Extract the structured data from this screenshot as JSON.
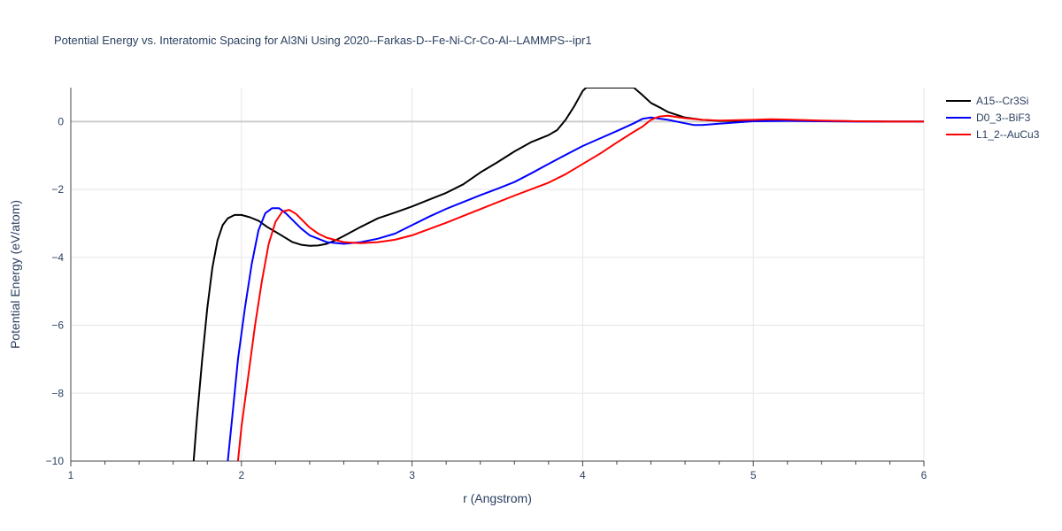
{
  "chart_data": {
    "type": "line",
    "title": "Potential Energy vs. Interatomic Spacing for Al3Ni Using 2020--Farkas-D--Fe-Ni-Cr-Co-Al--LAMMPS--ipr1",
    "xlabel": "r (Angstrom)",
    "ylabel": "Potential Energy (eV/atom)",
    "xlim": [
      1,
      6
    ],
    "ylim": [
      -10,
      1
    ],
    "xticks": [
      1,
      2,
      3,
      4,
      5,
      6
    ],
    "xtick_labels": [
      "1",
      "2",
      "3",
      "4",
      "5",
      "6"
    ],
    "yticks": [
      -10,
      -8,
      -6,
      -4,
      -2,
      0
    ],
    "ytick_labels": [
      "−10",
      "−8",
      "−6",
      "−4",
      "−2",
      "0"
    ],
    "grid": true,
    "legend_position": "top-right",
    "series": [
      {
        "name": "A15--Cr3Si",
        "color": "#000000",
        "x": [
          1.72,
          1.74,
          1.77,
          1.8,
          1.83,
          1.86,
          1.89,
          1.92,
          1.96,
          2.0,
          2.05,
          2.1,
          2.15,
          2.2,
          2.25,
          2.3,
          2.35,
          2.4,
          2.45,
          2.5,
          2.55,
          2.6,
          2.7,
          2.8,
          2.9,
          3.0,
          3.1,
          3.2,
          3.3,
          3.4,
          3.5,
          3.6,
          3.7,
          3.8,
          3.85,
          3.9,
          3.95,
          4.0,
          4.02,
          4.3,
          4.35,
          4.4,
          4.45,
          4.5,
          4.6,
          4.7,
          4.8,
          5.0,
          5.2,
          5.4,
          5.6,
          5.8,
          6.0
        ],
        "y": [
          -10.0,
          -8.7,
          -7.0,
          -5.5,
          -4.3,
          -3.5,
          -3.05,
          -2.85,
          -2.75,
          -2.75,
          -2.82,
          -2.92,
          -3.1,
          -3.25,
          -3.4,
          -3.55,
          -3.63,
          -3.66,
          -3.65,
          -3.6,
          -3.5,
          -3.37,
          -3.1,
          -2.85,
          -2.68,
          -2.5,
          -2.3,
          -2.1,
          -1.85,
          -1.5,
          -1.2,
          -0.88,
          -0.6,
          -0.4,
          -0.25,
          0.05,
          0.45,
          0.9,
          1.0,
          1.0,
          0.78,
          0.55,
          0.42,
          0.28,
          0.12,
          0.05,
          0.02,
          0.02,
          0.03,
          0.02,
          0.01,
          0.0,
          0.0
        ]
      },
      {
        "name": "D0_3--BiF3",
        "color": "#0000ff",
        "x": [
          1.92,
          1.95,
          1.98,
          2.02,
          2.06,
          2.1,
          2.14,
          2.18,
          2.22,
          2.26,
          2.3,
          2.35,
          2.4,
          2.5,
          2.6,
          2.7,
          2.8,
          2.9,
          3.0,
          3.1,
          3.2,
          3.3,
          3.4,
          3.5,
          3.6,
          3.7,
          3.8,
          3.9,
          4.0,
          4.1,
          4.2,
          4.3,
          4.35,
          4.4,
          4.5,
          4.6,
          4.65,
          4.7,
          4.8,
          5.0,
          5.2,
          5.4,
          5.6,
          5.8,
          6.0
        ],
        "y": [
          -10.0,
          -8.5,
          -7.0,
          -5.5,
          -4.2,
          -3.2,
          -2.7,
          -2.55,
          -2.55,
          -2.7,
          -2.9,
          -3.15,
          -3.35,
          -3.55,
          -3.6,
          -3.55,
          -3.45,
          -3.3,
          -3.05,
          -2.8,
          -2.57,
          -2.37,
          -2.17,
          -1.98,
          -1.78,
          -1.52,
          -1.25,
          -0.98,
          -0.72,
          -0.5,
          -0.28,
          -0.05,
          0.08,
          0.12,
          0.05,
          -0.05,
          -0.1,
          -0.1,
          -0.06,
          0.01,
          0.02,
          0.01,
          0.0,
          0.0,
          0.0
        ]
      },
      {
        "name": "L1_2--AuCu3",
        "color": "#ff0000",
        "x": [
          1.98,
          2.0,
          2.04,
          2.08,
          2.12,
          2.16,
          2.2,
          2.24,
          2.28,
          2.32,
          2.36,
          2.4,
          2.45,
          2.5,
          2.6,
          2.7,
          2.8,
          2.9,
          3.0,
          3.2,
          3.4,
          3.6,
          3.8,
          3.9,
          4.0,
          4.1,
          4.2,
          4.3,
          4.35,
          4.4,
          4.45,
          4.5,
          4.6,
          4.7,
          4.8,
          5.0,
          5.1,
          5.2,
          5.4,
          5.6,
          5.8,
          6.0
        ],
        "y": [
          -10.0,
          -9.0,
          -7.5,
          -6.0,
          -4.7,
          -3.6,
          -2.95,
          -2.65,
          -2.6,
          -2.72,
          -2.92,
          -3.12,
          -3.3,
          -3.42,
          -3.55,
          -3.58,
          -3.55,
          -3.48,
          -3.35,
          -2.98,
          -2.58,
          -2.18,
          -1.8,
          -1.55,
          -1.25,
          -0.95,
          -0.62,
          -0.3,
          -0.15,
          0.05,
          0.15,
          0.17,
          0.1,
          0.05,
          0.03,
          0.05,
          0.07,
          0.06,
          0.03,
          0.01,
          0.0,
          0.0
        ]
      }
    ]
  }
}
